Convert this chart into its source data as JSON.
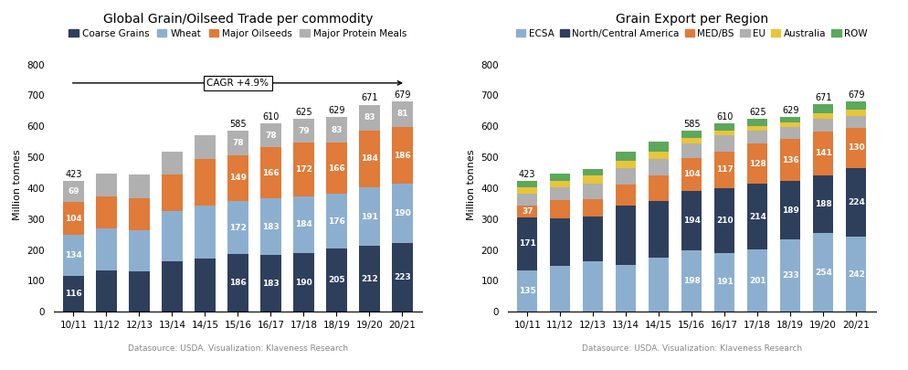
{
  "categories": [
    "10/11",
    "11/12",
    "12/13",
    "13/14",
    "14/15",
    "15/16",
    "16/17",
    "17/18",
    "18/19",
    "19/20",
    "20/21"
  ],
  "chart1_title": "Global Grain/Oilseed Trade per commodity",
  "chart1_legend": [
    "Coarse Grains",
    "Wheat",
    "Major Oilseeds",
    "Major Protein Meals"
  ],
  "chart1_colors": [
    "#2E3F5C",
    "#8DAFCF",
    "#E07B39",
    "#B0B0B0"
  ],
  "chart1_coarse_grains": [
    116,
    134,
    132,
    163,
    172,
    186,
    183,
    190,
    205,
    212,
    223
  ],
  "chart1_wheat": [
    134,
    136,
    131,
    163,
    172,
    172,
    183,
    184,
    176,
    191,
    190
  ],
  "chart1_major_oilseeds": [
    104,
    103,
    103,
    119,
    149,
    149,
    166,
    172,
    166,
    184,
    186
  ],
  "chart1_major_protein_meals": [
    69,
    75,
    77,
    73,
    78,
    78,
    78,
    79,
    83,
    83,
    81
  ],
  "chart1_shown_totals": [
    423,
    null,
    null,
    null,
    null,
    585,
    610,
    625,
    629,
    671,
    679
  ],
  "chart1_ylabel": "Million tonnes",
  "chart1_datasource": "Datasource: USDA. Visualization: Klaveness Research",
  "cagr_text": "CAGR +4.9%",
  "chart2_title": "Grain Export per Region",
  "chart2_legend": [
    "ECSA",
    "North/Central America",
    "MED/BS",
    "EU",
    "Australia",
    "ROW"
  ],
  "chart2_colors": [
    "#8DAFCF",
    "#2E3F5C",
    "#E07B39",
    "#B0B0B0",
    "#E8C53A",
    "#5CA85C"
  ],
  "chart2_ecsa": [
    135,
    147,
    162,
    151,
    174,
    198,
    191,
    201,
    233,
    254,
    242
  ],
  "chart2_north_central_am": [
    171,
    155,
    145,
    192,
    184,
    194,
    210,
    214,
    189,
    188,
    224
  ],
  "chart2_med_bs": [
    37,
    60,
    58,
    67,
    82,
    104,
    117,
    128,
    136,
    141,
    130
  ],
  "chart2_eu": [
    40,
    40,
    50,
    55,
    55,
    48,
    52,
    42,
    41,
    42,
    38
  ],
  "chart2_australia": [
    20,
    22,
    25,
    22,
    22,
    17,
    17,
    17,
    13,
    18,
    19
  ],
  "chart2_row": [
    20,
    24,
    23,
    31,
    34,
    24,
    23,
    23,
    17,
    28,
    26
  ],
  "chart2_shown_totals": [
    423,
    null,
    null,
    null,
    null,
    585,
    610,
    625,
    629,
    671,
    679
  ],
  "chart2_ylabel": "Million tonnes",
  "chart2_datasource": "Datasource: USDA. Visualization: Klaveness Research"
}
